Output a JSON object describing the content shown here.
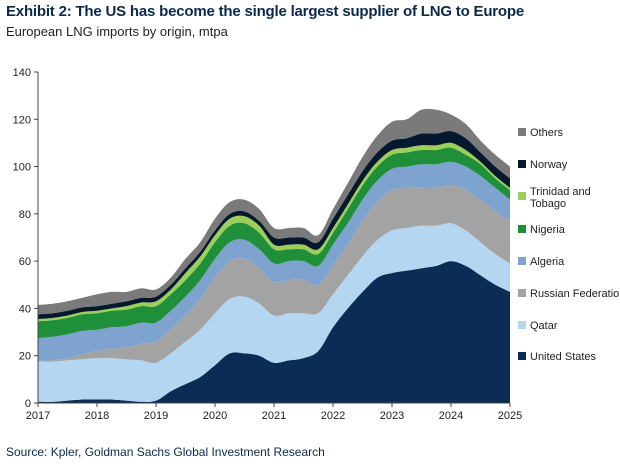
{
  "header": {
    "title": "Exhibit 2: The US has become the single largest supplier of LNG to Europe",
    "subtitle": "European LNG imports by origin, mtpa"
  },
  "footer": {
    "source": "Source: Kpler, Goldman Sachs Global Investment Research"
  },
  "chart_data": {
    "type": "area",
    "stacked": true,
    "title": "Exhibit 2: The US has become the single largest supplier of LNG to Europe",
    "subtitle": "European LNG imports by origin, mtpa",
    "xlabel": "",
    "ylabel": "",
    "xlim": [
      2017,
      2025
    ],
    "ylim": [
      0,
      140
    ],
    "x_ticks": [
      "2017",
      "2018",
      "2019",
      "2020",
      "2021",
      "2022",
      "2023",
      "2024",
      "2025"
    ],
    "y_ticks": [
      "0",
      "20",
      "40",
      "60",
      "80",
      "100",
      "120",
      "140"
    ],
    "legend_position": "right",
    "grid": false,
    "x": [
      2017.0,
      2017.25,
      2017.5,
      2017.75,
      2018.0,
      2018.25,
      2018.5,
      2018.75,
      2019.0,
      2019.25,
      2019.5,
      2019.75,
      2020.0,
      2020.25,
      2020.5,
      2020.75,
      2021.0,
      2021.25,
      2021.5,
      2021.75,
      2022.0,
      2022.25,
      2022.5,
      2022.75,
      2023.0,
      2023.25,
      2023.5,
      2023.75,
      2024.0,
      2024.25,
      2024.5,
      2024.75,
      2025.0
    ],
    "series": [
      {
        "name": "United States",
        "color": "#0b2d55",
        "values": [
          0.5,
          0.5,
          1,
          1.5,
          1.5,
          1.5,
          1,
          0.5,
          1,
          5,
          8,
          11,
          16,
          21,
          21,
          20,
          17,
          18,
          19,
          22,
          32,
          40,
          47,
          53,
          55,
          56,
          57,
          58,
          60,
          58,
          54,
          50,
          47
        ]
      },
      {
        "name": "Qatar",
        "color": "#b5d6f0",
        "values": [
          17,
          17,
          17,
          17,
          17.5,
          17.5,
          17.5,
          17.5,
          16,
          16,
          18,
          20,
          22,
          23,
          24,
          22,
          20,
          20,
          19,
          16,
          14,
          14,
          15,
          16,
          18,
          18,
          18,
          17,
          16,
          15,
          14,
          13,
          12
        ]
      },
      {
        "name": "Russian Federation",
        "color": "#a3a3a3",
        "values": [
          0,
          0.5,
          1,
          2,
          3,
          4,
          5,
          7,
          9,
          10,
          11,
          13,
          15,
          16,
          16,
          15,
          14,
          14,
          14,
          12,
          12,
          13,
          15,
          16,
          17,
          17,
          16,
          16,
          16,
          17,
          18,
          18,
          18
        ]
      },
      {
        "name": "Algeria",
        "color": "#7fa3cf",
        "values": [
          10,
          10,
          10,
          10,
          9,
          9,
          9,
          9,
          8,
          8,
          8,
          8,
          8,
          8,
          8,
          8,
          8,
          8,
          8,
          8,
          9,
          9,
          9,
          9,
          9,
          9,
          10,
          10,
          10,
          10,
          10,
          10,
          9
        ]
      },
      {
        "name": "Nigeria",
        "color": "#1f8f3a",
        "values": [
          7,
          7,
          7,
          7,
          7,
          7,
          7,
          7,
          7,
          7,
          7,
          7,
          7,
          7,
          7,
          7,
          6,
          5,
          5,
          5,
          5,
          6,
          6,
          6,
          6,
          6,
          6,
          6,
          6,
          5,
          5,
          4,
          4
        ]
      },
      {
        "name": "Trinidad and Tobago",
        "color": "#9ccf5a",
        "values": [
          1,
          1,
          1,
          1,
          1,
          1,
          1.5,
          1.5,
          2,
          2,
          3,
          3,
          3,
          3,
          3,
          3,
          2,
          2,
          2,
          2,
          2,
          2,
          2,
          2,
          2,
          2,
          2,
          2,
          2,
          2,
          1,
          1,
          1
        ]
      },
      {
        "name": "Norway",
        "color": "#06182e",
        "values": [
          2,
          2,
          2,
          2,
          2,
          2,
          2,
          2,
          2,
          2,
          2,
          2,
          2,
          2,
          2,
          2,
          3,
          3,
          3,
          3,
          4,
          4,
          4,
          4,
          4,
          4,
          5,
          5,
          5,
          5,
          4,
          4,
          4
        ]
      },
      {
        "name": "Others",
        "color": "#7a7a7a",
        "values": [
          4,
          4,
          4,
          4,
          5,
          5,
          4,
          4,
          3,
          3,
          4,
          4,
          5,
          5,
          5,
          5,
          4,
          4,
          4,
          3,
          4,
          5,
          6,
          7,
          8,
          8,
          10,
          10,
          7,
          6,
          5,
          5,
          5
        ]
      }
    ]
  }
}
